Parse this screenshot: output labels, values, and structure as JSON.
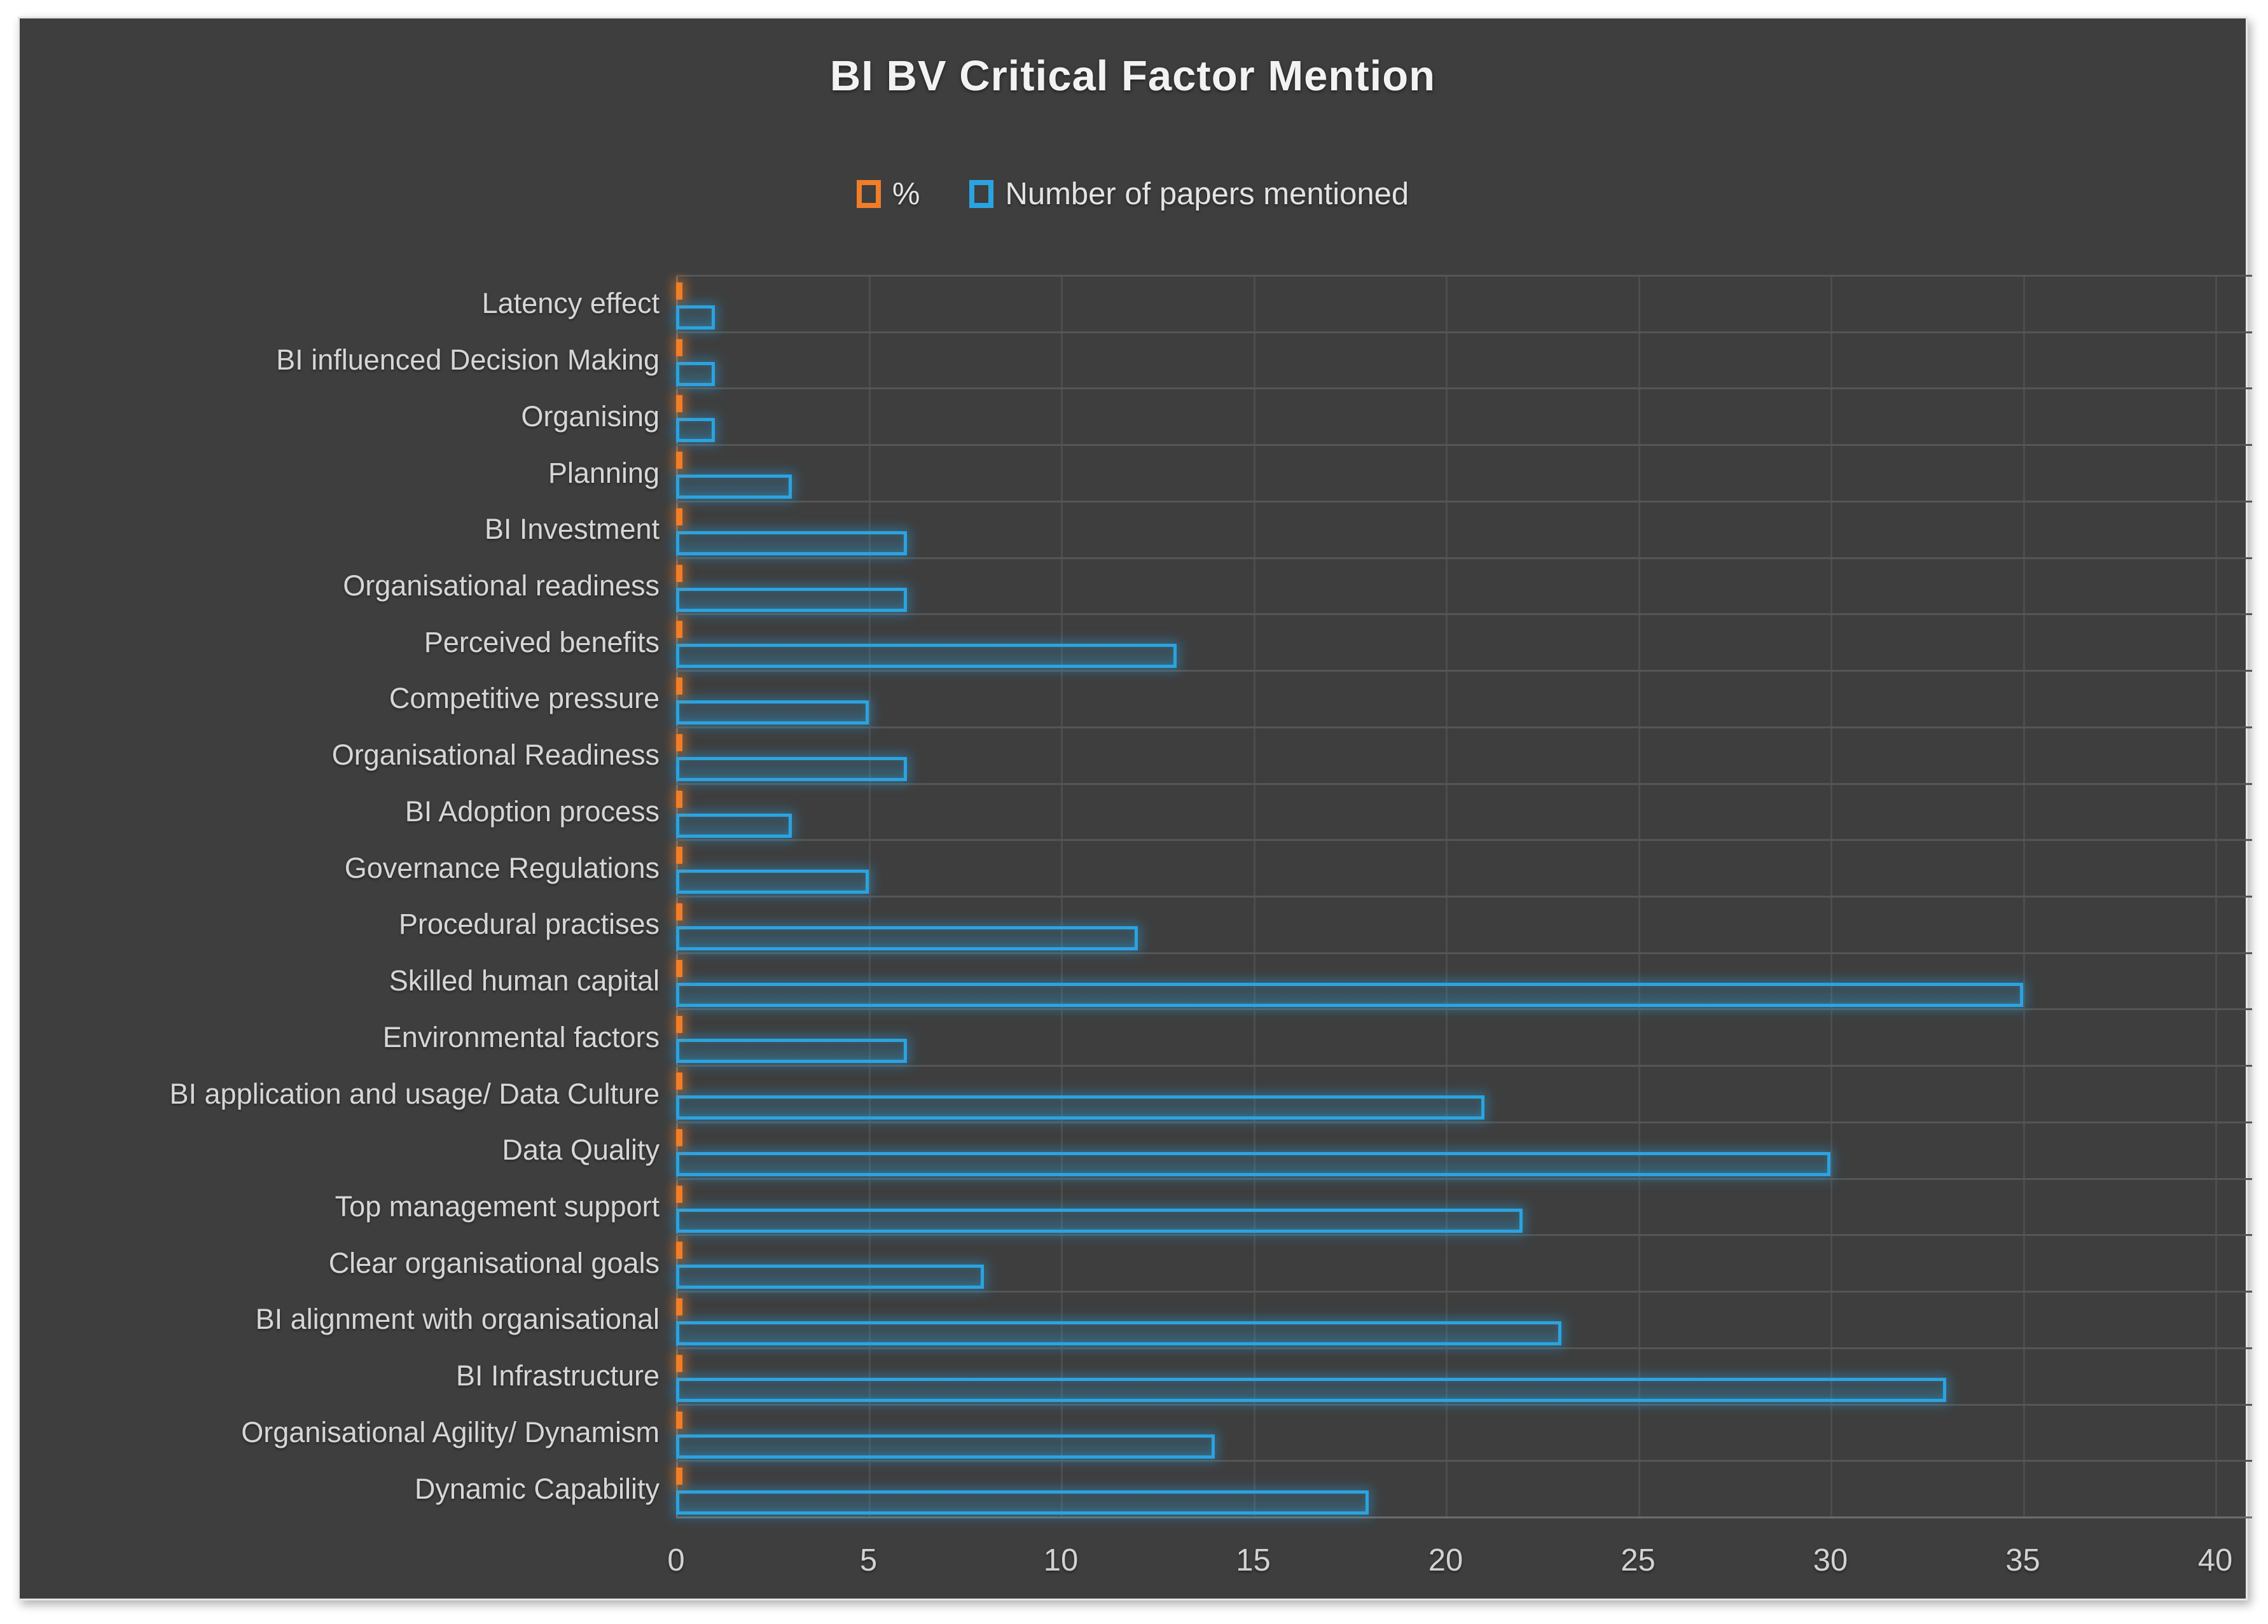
{
  "title": "BI BV Critical Factor Mention",
  "legend": [
    {
      "label": "%",
      "color": "#f07d28"
    },
    {
      "label": "Number of papers mentioned",
      "color": "#2ba3e0"
    }
  ],
  "colors": {
    "panel_background": "#3e3e3e",
    "page_background": "#ffffff",
    "title_text": "#f2f2f2",
    "label_text": "#d6d6d6",
    "gridline": "#555555",
    "percent_series": "#f07d28",
    "papers_series": "#2ba3e0"
  },
  "chart_data": {
    "type": "bar",
    "orientation": "horizontal",
    "title": "BI BV Critical Factor Mention",
    "xlabel": "",
    "ylabel": "",
    "xlim": [
      0,
      40
    ],
    "x_ticks": [
      0,
      5,
      10,
      15,
      20,
      25,
      30,
      35,
      40
    ],
    "grid": true,
    "legend_position": "top",
    "categories": [
      "Latency effect",
      "BI influenced Decision Making",
      "Organising",
      "Planning",
      "BI Investment",
      "Organisational readiness",
      "Perceived benefits",
      "Competitive pressure",
      "Organisational Readiness",
      "BI Adoption process",
      "Governance Regulations",
      "Procedural practises",
      "Skilled human capital",
      "Environmental factors",
      "BI application and usage/ Data Culture",
      "Data Quality",
      "Top management support",
      "Clear organisational goals",
      "BI alignment with organisational",
      "BI Infrastructure",
      "Organisational Agility/ Dynamism",
      "Dynamic Capability"
    ],
    "series": [
      {
        "name": "%",
        "color": "#f07d28",
        "values": [
          0.004,
          0.004,
          0.004,
          0.011,
          0.022,
          0.022,
          0.048,
          0.018,
          0.022,
          0.011,
          0.018,
          0.044,
          0.129,
          0.022,
          0.077,
          0.11,
          0.081,
          0.029,
          0.085,
          0.121,
          0.051,
          0.066
        ]
      },
      {
        "name": "Number of papers mentioned",
        "color": "#2ba3e0",
        "values": [
          1,
          1,
          1,
          3,
          6,
          6,
          13,
          5,
          6,
          3,
          5,
          12,
          35,
          6,
          21,
          30,
          22,
          8,
          23,
          33,
          14,
          18
        ]
      }
    ]
  }
}
